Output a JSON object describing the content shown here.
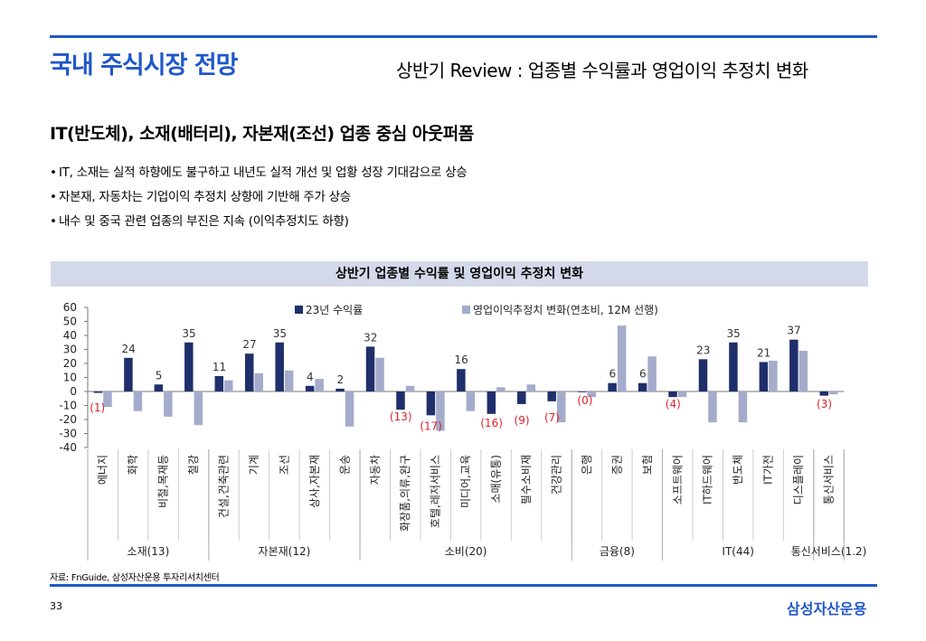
{
  "header": {
    "title": "국내 주식시장 전망",
    "subtitle": "상반기 Review : 업종별 수익률과 영업이익 추정치 변화"
  },
  "headline": "IT(반도체), 소재(배터리), 자본재(조선) 업종 중심 아웃퍼폼",
  "bullets": [
    "IT, 소재는 실적 하향에도 불구하고 내년도 실적 개선 및 업황 성장 기대감으로 상승",
    "자본재, 자동차는 기업이익 추정치 상향에 기반해 주가 상승",
    "내수 및 중국 관련 업종의 부진은 지속 (이익추정치도 하향)"
  ],
  "bullet_mark": "•",
  "chart_title": "상반기 업종별 수익률 및 영업이익 추정치 변화",
  "chart_data": {
    "type": "bar",
    "categories": [
      "에너지",
      "화학",
      "비철,목재등",
      "철강",
      "건설,건축관련",
      "기계",
      "조선",
      "상사,자본재",
      "운송",
      "자동차",
      "화장품,의류,완구",
      "호텔,레저서비스",
      "미디어,교육",
      "소매(유통)",
      "필수소비재",
      "건강관리",
      "은행",
      "증권",
      "보험",
      "소프트웨어",
      "IT하드웨어",
      "반도체",
      "IT가전",
      "디스플레이",
      "통신서비스"
    ],
    "series": [
      {
        "name": "23년 수익률",
        "color": "#1f2f6b",
        "values": [
          -1,
          24,
          5,
          35,
          11,
          27,
          35,
          4,
          2,
          32,
          -13,
          -17,
          16,
          -16,
          -9,
          -7,
          0,
          6,
          6,
          -4,
          23,
          35,
          21,
          37,
          -3
        ]
      },
      {
        "name": "영업이익추정치 변화(연초비, 12M 선행)",
        "color": "#a4abcb",
        "values": [
          -11,
          -14,
          -18,
          -24,
          8,
          13,
          15,
          9,
          -25,
          24,
          4,
          -28,
          -14,
          3,
          5,
          -22,
          -4,
          47,
          25,
          -4,
          -22,
          -22,
          22,
          29,
          -2
        ]
      }
    ],
    "data_labels": [
      "(1)",
      "24",
      "5",
      "35",
      "11",
      "27",
      "35",
      "4",
      "2",
      "32",
      "(13)",
      "(17)",
      "16",
      "(16)",
      "(9)",
      "(7)",
      "(0)",
      "6",
      "6",
      "(4)",
      "23",
      "35",
      "21",
      "37",
      "(3)"
    ],
    "ylim": [
      -40,
      60
    ],
    "yticks": [
      60,
      50,
      40,
      30,
      20,
      10,
      0,
      -10,
      -20,
      -30,
      -40
    ],
    "groups": [
      {
        "label": "소재(13)",
        "start": 0,
        "end": 3
      },
      {
        "label": "자본재(12)",
        "start": 4,
        "end": 8
      },
      {
        "label": "소비(20)",
        "start": 9,
        "end": 15
      },
      {
        "label": "금융(8)",
        "start": 16,
        "end": 18
      },
      {
        "label": "IT(44)",
        "start": 19,
        "end": 23
      },
      {
        "label": "통신서비스(1.2)",
        "start": 24,
        "end": 24
      }
    ],
    "negative_label_color": "#e0202a",
    "positive_label_color": "#333333",
    "grid": false,
    "legend_position": "top"
  },
  "source": "자료: FnGuide, 삼성자산운용 투자리서치센터",
  "page_number": "33",
  "brand": "삼성자산운용",
  "accent_color": "#1f57c8"
}
